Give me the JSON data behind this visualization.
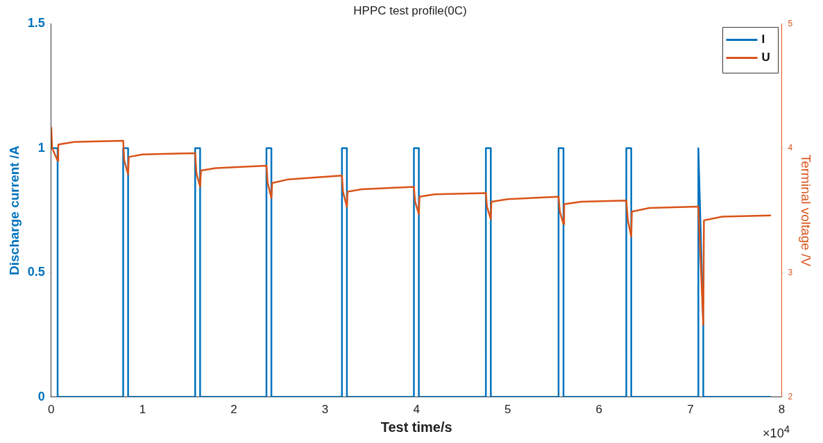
{
  "chart_data": {
    "type": "line",
    "title": "HPPC test profile(0C)",
    "xlabel": "Test time/s",
    "ylabel": "Discharge current /A",
    "y2label": "Terminal voltage /V",
    "xlim": [
      0,
      8
    ],
    "xticks": [
      0,
      1,
      2,
      3,
      4,
      5,
      6,
      7,
      8
    ],
    "ylim": [
      0,
      1.5
    ],
    "yticks": [
      0,
      0.5,
      1,
      1.5
    ],
    "y2lim": [
      2,
      5
    ],
    "y2ticks": [
      2,
      3,
      4,
      5
    ],
    "grid": false,
    "legend": "top right",
    "marker": "none",
    "line_style": "solid",
    "annotations": [
      "×10$^{4}$"
    ],
    "series": [
      {
        "name": "I",
        "color": "#0072bd",
        "x": [
          0,
          0.07,
          0.07,
          0.788,
          0.788,
          0.842,
          0.842,
          1.5765,
          1.5765,
          1.6305,
          1.6305,
          2.357,
          2.357,
          2.411,
          2.411,
          3.184,
          3.184,
          3.238,
          3.238,
          3.972,
          3.972,
          4.026,
          4.026,
          4.76,
          4.76,
          4.814,
          4.814,
          5.556,
          5.556,
          5.61,
          5.61,
          6.298,
          6.298,
          6.352,
          6.352,
          7.087,
          7.087,
          7.141,
          7.141,
          7.8825
        ],
        "values": [
          1,
          1,
          0,
          0,
          1,
          1,
          0,
          0,
          1,
          1,
          0,
          0,
          1,
          1,
          0,
          0,
          1,
          1,
          0,
          0,
          1,
          1,
          0,
          0,
          1,
          1,
          0,
          0,
          1,
          1,
          0,
          0,
          1,
          1,
          0,
          0,
          1,
          0.29,
          0,
          0
        ]
      },
      {
        "name": "U",
        "color": "#d95319",
        "axis": "y2",
        "x": [
          0,
          0.01,
          0.07,
          0.077,
          0.25,
          0.788,
          0.8,
          0.842,
          0.85,
          1.0,
          1.5765,
          1.59,
          1.6305,
          1.64,
          1.8,
          2.357,
          2.37,
          2.411,
          2.42,
          2.6,
          3.184,
          3.195,
          3.238,
          3.245,
          3.4,
          3.972,
          3.985,
          4.026,
          4.033,
          4.2,
          4.76,
          4.772,
          4.814,
          4.821,
          5.0,
          5.556,
          5.57,
          5.61,
          5.617,
          5.8,
          6.298,
          6.315,
          6.352,
          6.359,
          6.55,
          7.087,
          7.1,
          7.141,
          7.148,
          7.35,
          7.8825
        ],
        "values": [
          4.17,
          4.0,
          3.9,
          4.03,
          4.05,
          4.06,
          3.9,
          3.79,
          3.93,
          3.95,
          3.96,
          3.8,
          3.69,
          3.82,
          3.84,
          3.86,
          3.72,
          3.6,
          3.72,
          3.75,
          3.78,
          3.65,
          3.53,
          3.65,
          3.67,
          3.69,
          3.57,
          3.47,
          3.61,
          3.63,
          3.64,
          3.53,
          3.43,
          3.57,
          3.59,
          3.61,
          3.49,
          3.39,
          3.55,
          3.57,
          3.58,
          3.42,
          3.29,
          3.49,
          3.52,
          3.53,
          3.3,
          2.58,
          3.42,
          3.45,
          3.46
        ]
      }
    ]
  }
}
